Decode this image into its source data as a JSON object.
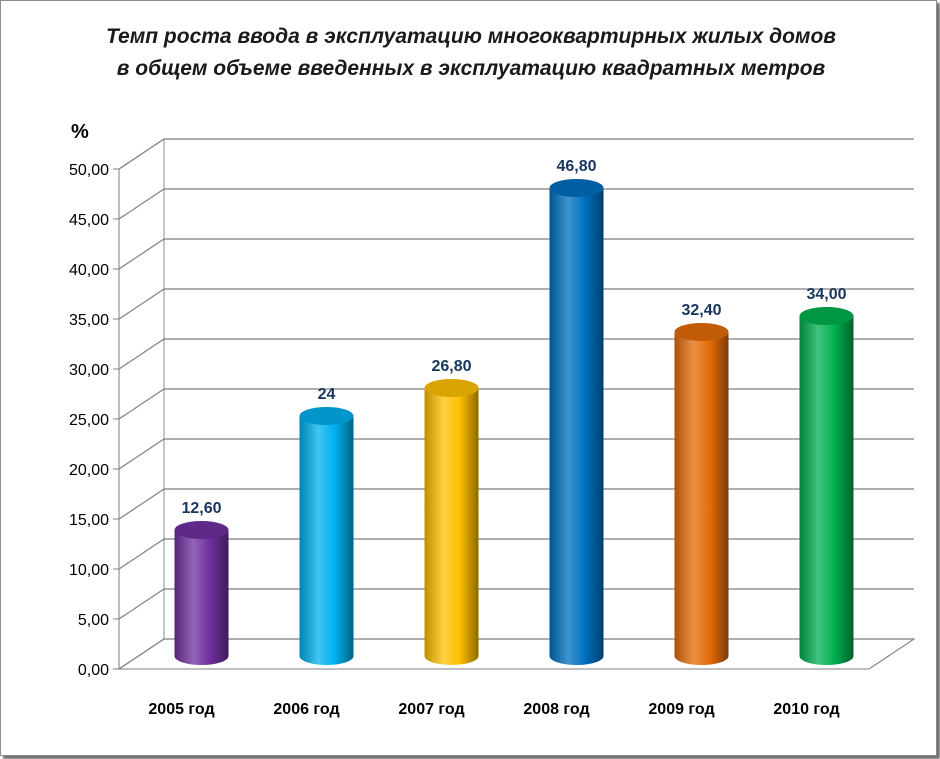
{
  "chart_data": {
    "type": "bar",
    "title": "Темп роста ввода в эксплуатацию многоквартирных жилых домов в общем объеме введенных в эксплуатацию квадратных метров",
    "ylabel": "%",
    "xlabel": "",
    "categories": [
      "2005 год",
      "2006 год",
      "2007 год",
      "2008 год",
      "2009 год",
      "2010 год"
    ],
    "values": [
      12.6,
      24,
      26.8,
      46.8,
      32.4,
      34.0
    ],
    "data_labels": [
      "12,60",
      "24",
      "26,80",
      "46,80",
      "32,40",
      "34,00"
    ],
    "y_ticks": [
      "0,00",
      "5,00",
      "10,00",
      "15,00",
      "20,00",
      "25,00",
      "30,00",
      "35,00",
      "40,00",
      "45,00",
      "50,00"
    ],
    "ylim": [
      0,
      50
    ],
    "grid": true,
    "legend": "none",
    "bar_colors": [
      "#7030a0",
      "#00b0f0",
      "#ffc000",
      "#0070c0",
      "#e46c0a",
      "#00b050"
    ]
  }
}
